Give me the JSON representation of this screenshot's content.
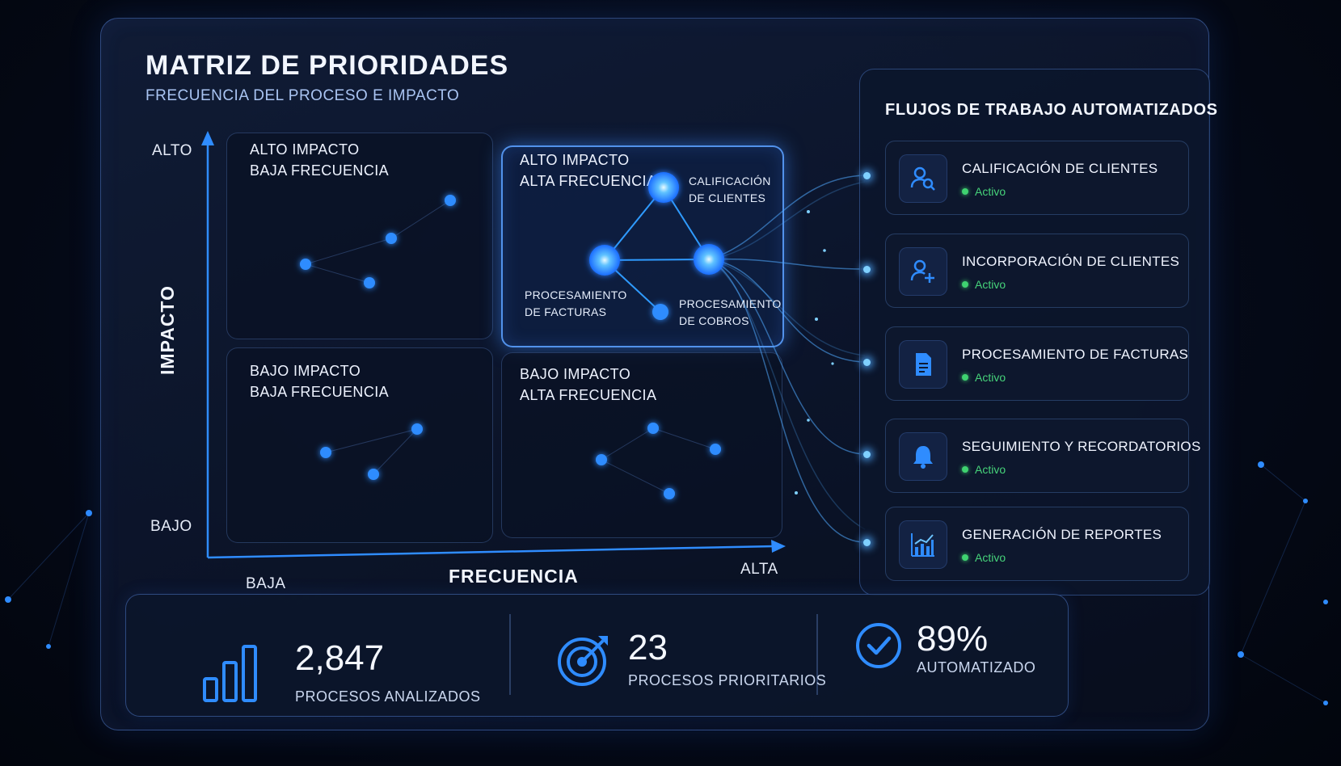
{
  "header": {
    "title": "MATRIZ DE PRIORIDADES",
    "subtitle": "FRECUENCIA DEL PROCESO E IMPACTO"
  },
  "matrix": {
    "y_axis": {
      "title": "IMPACTO",
      "high": "ALTO",
      "low": "BAJO"
    },
    "x_axis": {
      "title": "FRECUENCIA",
      "low": "BAJA",
      "high": "ALTA"
    },
    "quadrants": {
      "top_left": {
        "line1": "ALTO IMPACTO",
        "line2": "BAJA FRECUENCIA"
      },
      "top_right": {
        "line1": "ALTO IMPACTO",
        "line2": "ALTA FRECUENCIA"
      },
      "bottom_left": {
        "line1": "BAJO IMPACTO",
        "line2": "BAJA FRECUENCIA"
      },
      "bottom_right": {
        "line1": "BAJO IMPACTO",
        "line2": "ALTA FRECUENCIA"
      }
    },
    "highlight_nodes": {
      "calificacion": {
        "line1": "CALIFICACIÓN",
        "line2": "DE CLIENTES"
      },
      "facturas": {
        "line1": "PROCESAMIENTO",
        "line2": "DE FACTURAS"
      },
      "cobros": {
        "line1": "PROCESAMIENTO",
        "line2": "DE COBROS"
      }
    }
  },
  "workflows": {
    "title": "FLUJOS DE TRABAJO AUTOMATIZADOS",
    "items": [
      {
        "name": "CALIFICACIÓN DE CLIENTES",
        "status": "Activo",
        "icon": "user-search-icon"
      },
      {
        "name": "INCORPORACIÓN DE CLIENTES",
        "status": "Activo",
        "icon": "user-add-icon"
      },
      {
        "name": "PROCESAMIENTO DE FACTURAS",
        "status": "Activo",
        "icon": "document-icon"
      },
      {
        "name": "SEGUIMIENTO Y RECORDATORIOS",
        "status": "Activo",
        "icon": "bell-icon"
      },
      {
        "name": "GENERACIÓN DE REPORTES",
        "status": "Activo",
        "icon": "bar-chart-icon"
      }
    ]
  },
  "stats": {
    "analyzed": {
      "value": "2,847",
      "label": "PROCESOS ANALIZADOS",
      "icon": "bar-chart-icon"
    },
    "priority": {
      "value": "23",
      "label": "PROCESOS PRIORITARIOS",
      "icon": "target-icon"
    },
    "automated": {
      "value": "89%",
      "label": "AUTOMATIZADO",
      "icon": "check-circle-icon"
    }
  },
  "colors": {
    "accent": "#2f8cff",
    "glow": "#6cc4ff",
    "status_active": "#3fd270",
    "background": "#050a18"
  }
}
